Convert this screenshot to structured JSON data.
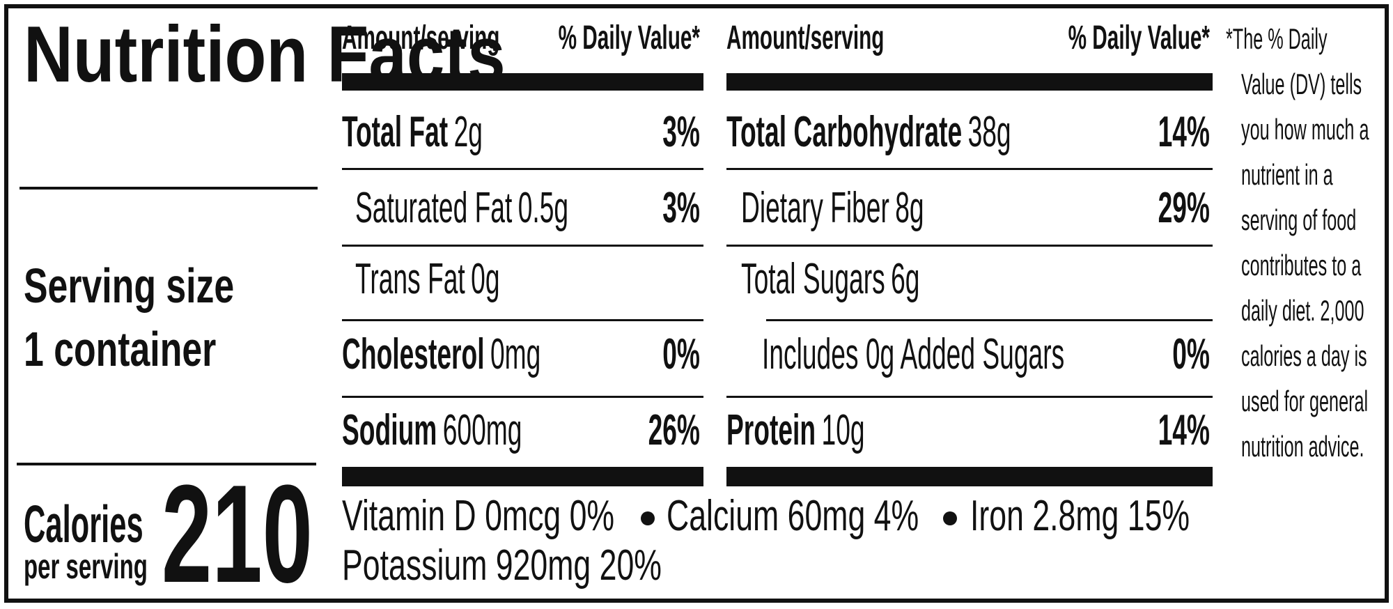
{
  "title": "Nutrition Facts",
  "serving": {
    "label": "Serving size",
    "value": "1 container"
  },
  "calories": {
    "label": "Calories",
    "sublabel": "per serving",
    "value": "210"
  },
  "columns": [
    {
      "header": {
        "amount": "Amount/serving",
        "dv": "% Daily Value*"
      },
      "rows": [
        {
          "name": "Total Fat",
          "amount": "2g",
          "dv": "3%"
        },
        {
          "name": "Saturated Fat",
          "amount": "0.5g",
          "dv": "3%"
        },
        {
          "name": "Trans Fat",
          "amount": "0g"
        },
        {
          "name": "Cholesterol",
          "amount": "0mg",
          "dv": "0%"
        },
        {
          "name": "Sodium",
          "amount": "600mg",
          "dv": "26%"
        }
      ]
    },
    {
      "header": {
        "amount": "Amount/serving",
        "dv": "% Daily Value*"
      },
      "rows": [
        {
          "name": "Total Carbohydrate",
          "amount": "38g",
          "dv": "14%"
        },
        {
          "name": "Dietary Fiber",
          "amount": "8g",
          "dv": "29%"
        },
        {
          "name": "Total Sugars",
          "amount": "6g"
        },
        {
          "name": "Includes 0g Added Sugars",
          "dv": "0%"
        },
        {
          "name": "Protein",
          "amount": "10g",
          "dv": "14%"
        }
      ]
    }
  ],
  "vitamins": [
    "Vitamin D 0mcg 0%",
    "Calcium 60mg 4%",
    "Iron 2.8mg 15%",
    "Potassium 920mg 20%"
  ],
  "footnote": [
    "*The % Daily",
    "Value (DV) tells",
    "you how much a",
    "nutrient in a",
    "serving of food",
    "contributes to a",
    "daily diet. 2,000",
    "calories a day is",
    "used for general",
    "nutrition advice."
  ]
}
